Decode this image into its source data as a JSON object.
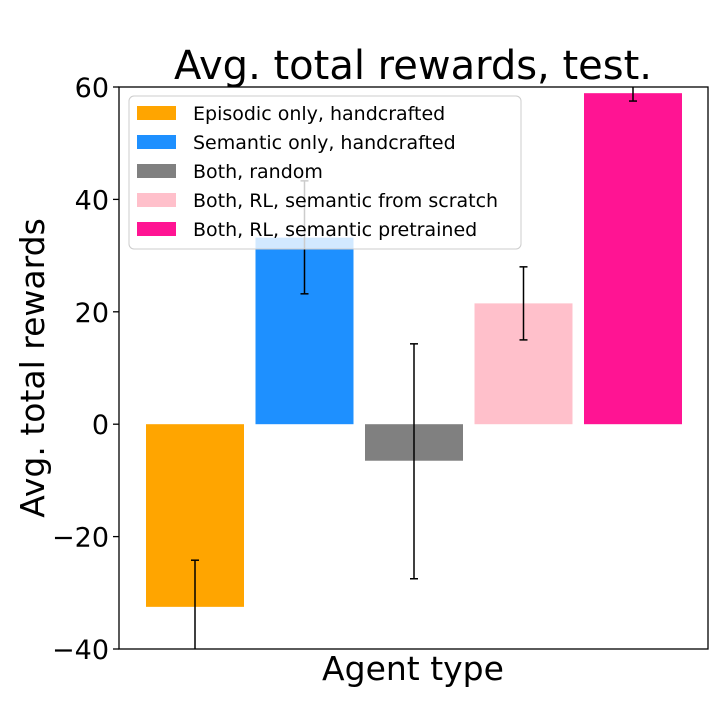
{
  "chart_data": {
    "type": "bar",
    "title": "Avg. total rewards, test.",
    "xlabel": "Agent type",
    "ylabel": "Avg. total rewards",
    "ylim": [
      -40,
      60
    ],
    "yticks": [
      -40,
      -20,
      0,
      20,
      40,
      60
    ],
    "ytick_labels": [
      "−40",
      "−20",
      "0",
      "20",
      "40",
      "60"
    ],
    "grid": false,
    "legend_position": "top-left",
    "series": [
      {
        "name": "Episodic only, handcrafted",
        "value": -32.5,
        "err_low": -40.5,
        "err_high": -24.2,
        "color": "#FFA500"
      },
      {
        "name": "Semantic only, handcrafted",
        "value": 33.2,
        "err_low": 23.2,
        "err_high": 43.3,
        "color": "#1E90FF"
      },
      {
        "name": "Both, random",
        "value": -6.5,
        "err_low": -27.5,
        "err_high": 14.3,
        "color": "#808080"
      },
      {
        "name": "Both, RL, semantic from scratch",
        "value": 21.5,
        "err_low": 15.0,
        "err_high": 28.0,
        "color": "#FFC0CB"
      },
      {
        "name": "Both, RL, semantic pretrained",
        "value": 58.9,
        "err_low": 57.5,
        "err_high": 60.4,
        "color": "#FF1493"
      }
    ]
  }
}
